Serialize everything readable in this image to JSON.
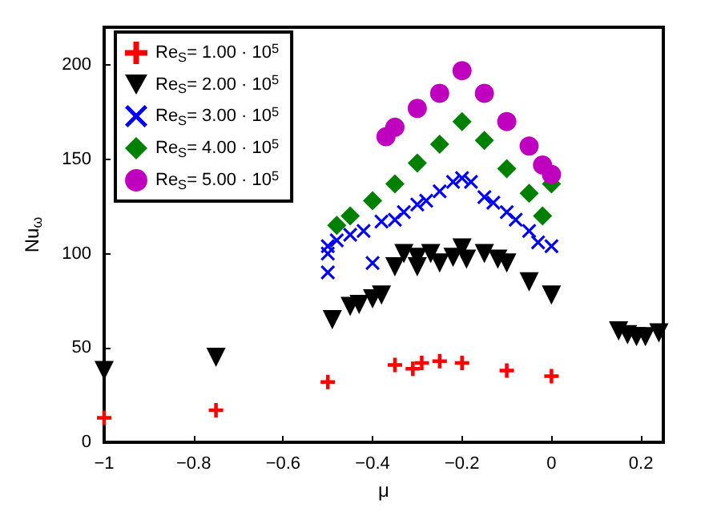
{
  "chart_data": {
    "type": "scatter",
    "xlabel": "μ",
    "ylabel": "Nu$_{ω}$",
    "xlim": [
      -1,
      0.25
    ],
    "xticks": [
      -1,
      -0.8,
      -0.6,
      -0.4,
      -0.2,
      0,
      0.2
    ],
    "ylim": [
      0,
      220
    ],
    "yticks": [
      0,
      50,
      100,
      150,
      200
    ],
    "grid": false,
    "legend": "top left",
    "series": [
      {
        "name": "Re$_{S}$= 1.00 · 10$^{5}$",
        "color": "#ff0000",
        "marker": "cross",
        "x": [
          -1,
          -0.75,
          -0.5,
          -0.35,
          -0.31,
          -0.29,
          -0.25,
          -0.2,
          -0.1,
          0
        ],
        "values": [
          13,
          17,
          32,
          41,
          39,
          42,
          43,
          42,
          38,
          35
        ]
      },
      {
        "name": "Re$_{S}$= 2.00 · 10$^{5}$",
        "color": "#000000",
        "marker": "triangle",
        "x": [
          -1,
          -0.75,
          -0.49,
          -0.45,
          -0.43,
          -0.4,
          -0.38,
          -0.35,
          -0.33,
          -0.3,
          -0.3,
          -0.27,
          -0.25,
          -0.22,
          -0.2,
          -0.19,
          -0.15,
          -0.12,
          -0.1,
          -0.05,
          0,
          0.15,
          0.17,
          0.19,
          0.21,
          0.24
        ],
        "values": [
          38,
          45,
          65,
          72,
          73,
          76,
          78,
          93,
          100,
          98,
          93,
          100,
          95,
          98,
          103,
          97,
          100,
          97,
          95,
          85,
          78,
          59,
          57,
          56,
          56,
          58
        ]
      },
      {
        "name": "Re$_{S}$= 3.00 · 10$^{5}$",
        "color": "#0000ff",
        "marker": "x",
        "x": [
          -0.5,
          -0.5,
          -0.5,
          -0.48,
          -0.45,
          -0.42,
          -0.4,
          -0.38,
          -0.35,
          -0.33,
          -0.3,
          -0.28,
          -0.25,
          -0.22,
          -0.2,
          -0.18,
          -0.15,
          -0.13,
          -0.1,
          -0.08,
          -0.05,
          -0.03,
          0
        ],
        "values": [
          90,
          100,
          104,
          107,
          110,
          112,
          95,
          117,
          118,
          122,
          126,
          128,
          133,
          138,
          140,
          138,
          130,
          127,
          122,
          118,
          112,
          106,
          104
        ]
      },
      {
        "name": "Re$_{S}$= 4.00 · 10$^{5}$",
        "color": "#008000",
        "marker": "diamond",
        "x": [
          -0.48,
          -0.45,
          -0.4,
          -0.35,
          -0.3,
          -0.25,
          -0.2,
          -0.15,
          -0.1,
          -0.05,
          -0.02,
          0
        ],
        "values": [
          115,
          120,
          128,
          137,
          148,
          158,
          170,
          160,
          145,
          132,
          120,
          137
        ]
      },
      {
        "name": "Re$_{S}$= 5.00 · 10$^{5}$",
        "color": "#bf00bf",
        "marker": "circle",
        "x": [
          -0.37,
          -0.35,
          -0.3,
          -0.25,
          -0.2,
          -0.15,
          -0.1,
          -0.05,
          -0.02,
          0
        ],
        "values": [
          162,
          167,
          177,
          185,
          197,
          185,
          170,
          157,
          147,
          142
        ]
      }
    ]
  }
}
